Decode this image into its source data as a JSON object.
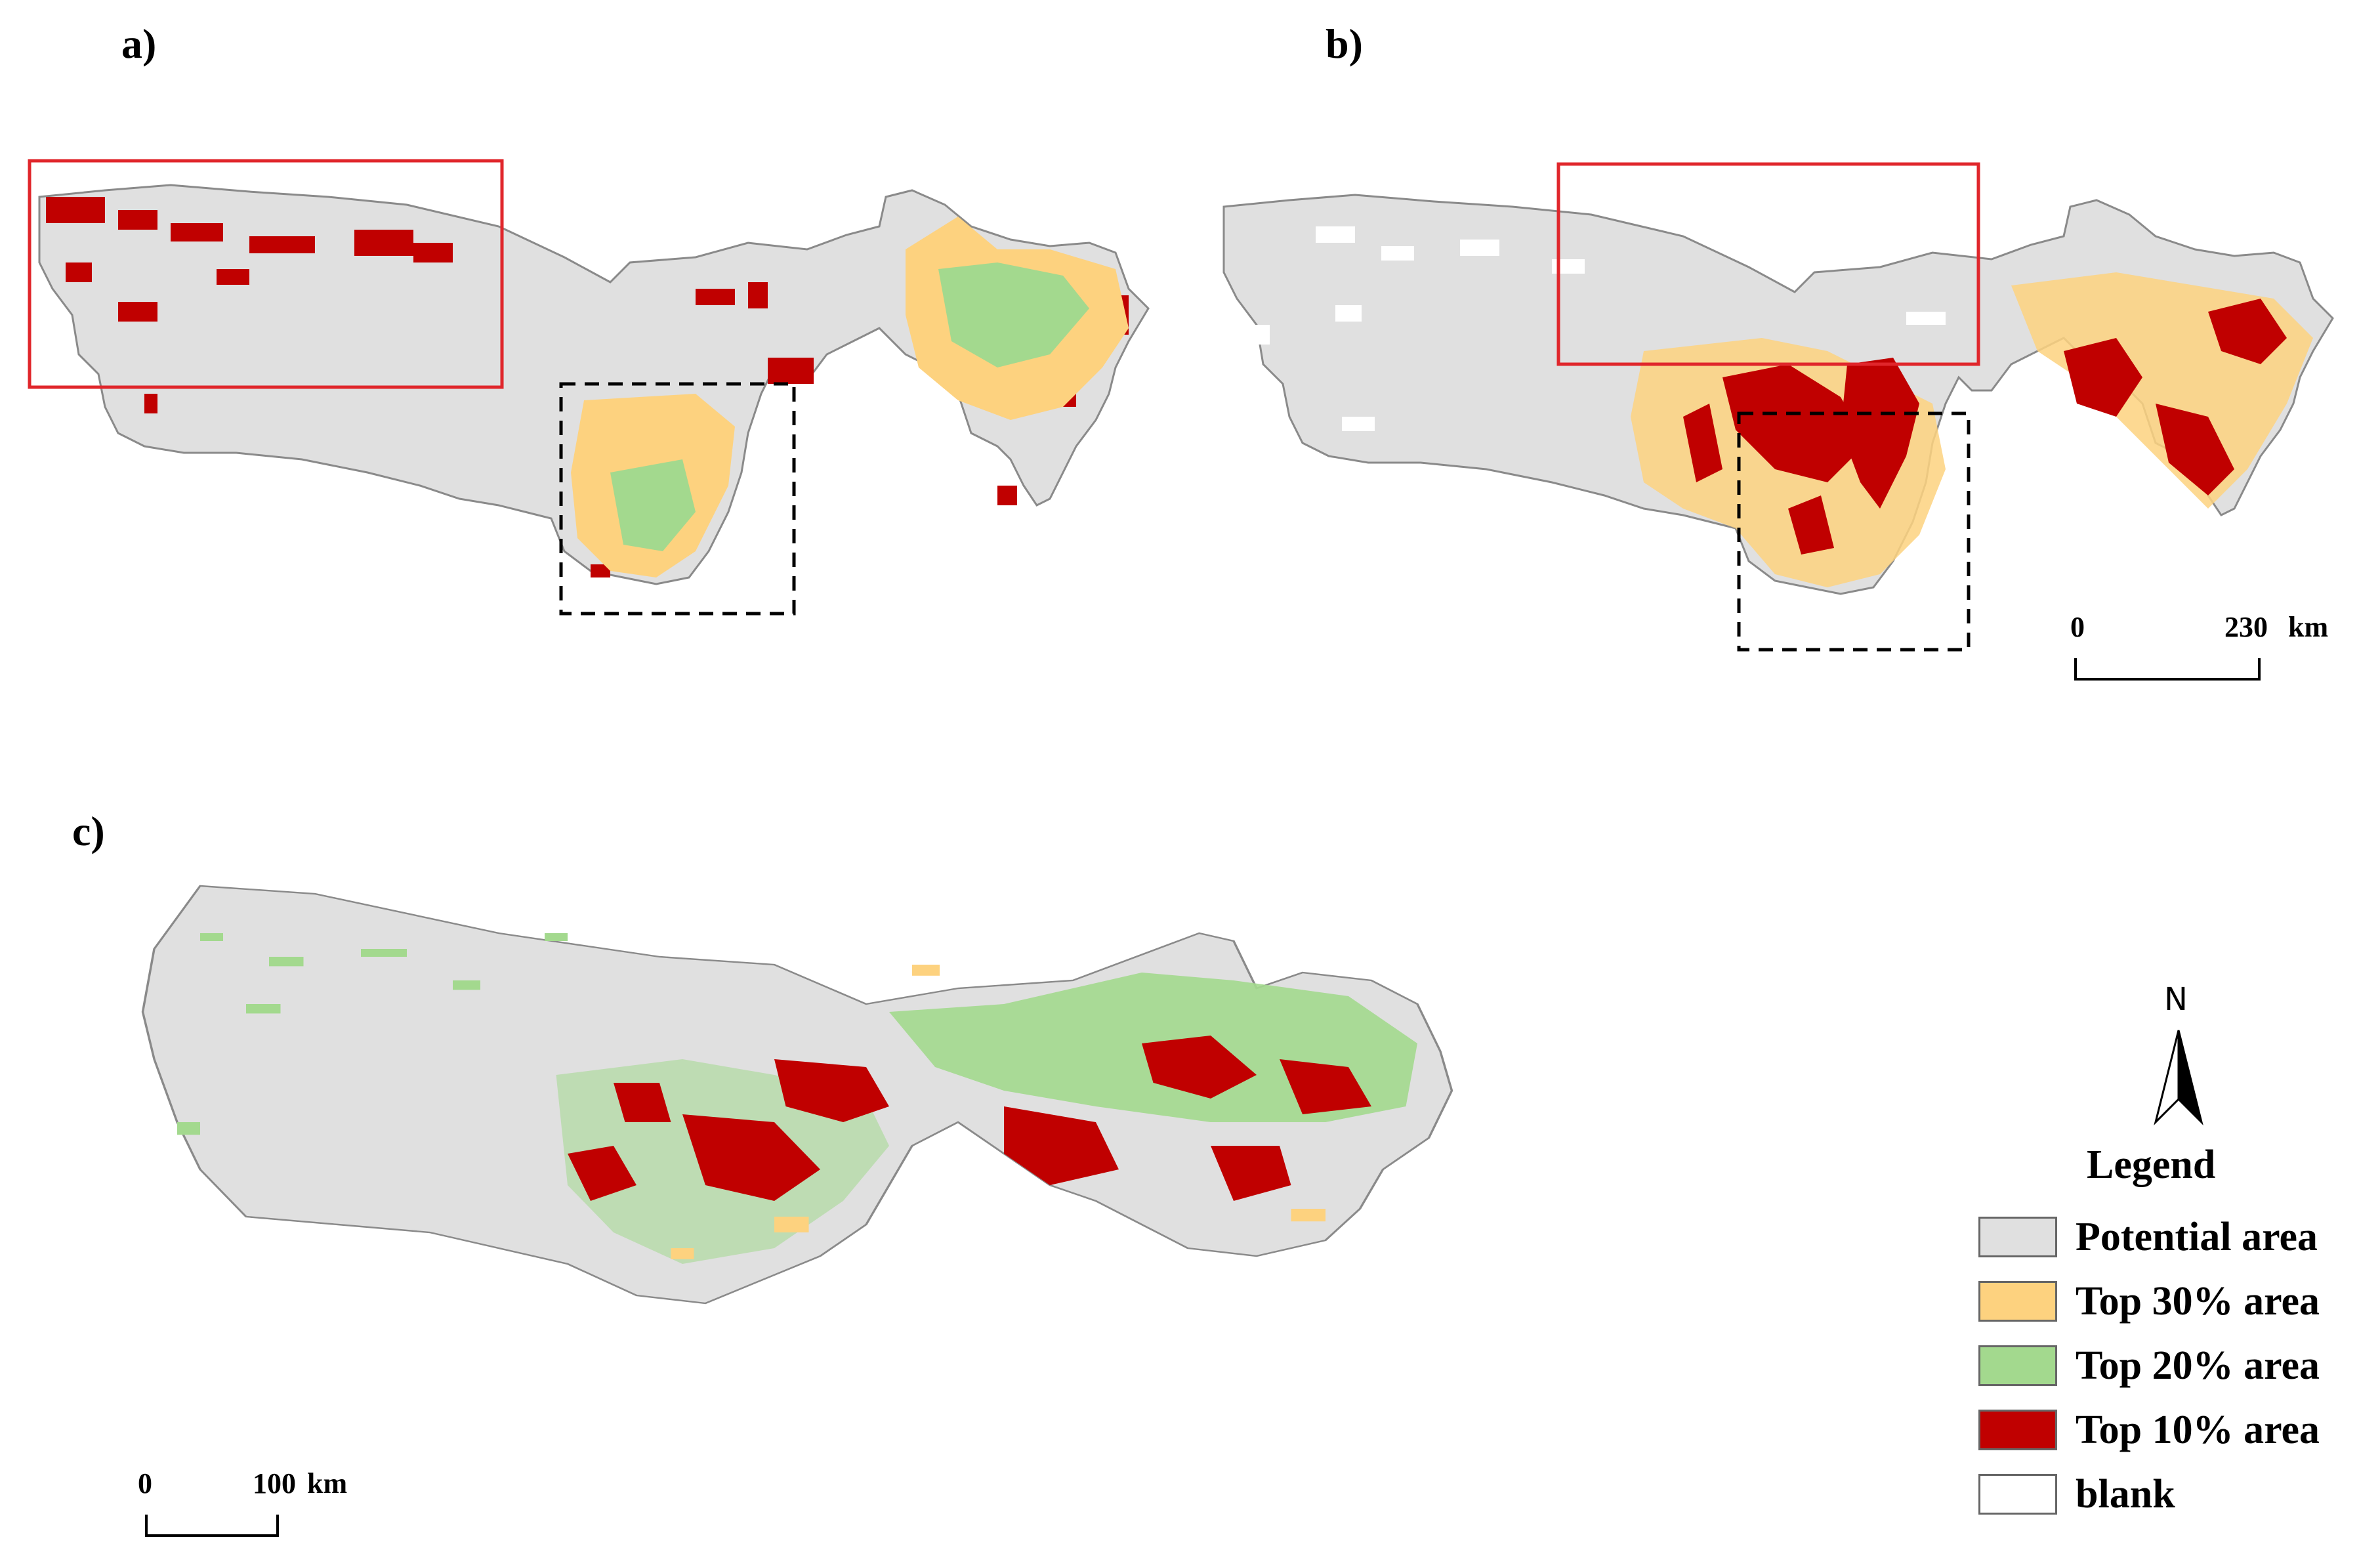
{
  "panels": {
    "a": {
      "label": "a)"
    },
    "b": {
      "label": "b)"
    },
    "c": {
      "label": "c)"
    }
  },
  "colors": {
    "potential": "#e0e0e0",
    "top30": "#fdd27f",
    "top20": "#a3d98e",
    "top10": "#c00000",
    "blank": "#ffffff",
    "highlight_box": "#e0262b",
    "dashed_box": "#000000"
  },
  "scale_bars": {
    "top": {
      "start": "0",
      "end": "230",
      "unit": "km"
    },
    "bottom": {
      "start": "0",
      "end": "100",
      "unit": "km"
    }
  },
  "north_arrow": {
    "letter": "N",
    "icon": "north-arrow-icon"
  },
  "legend": {
    "title": "Legend",
    "items": [
      {
        "label": "Potential area",
        "color": "#e0e0e0"
      },
      {
        "label": "Top 30% area",
        "color": "#fdd27f"
      },
      {
        "label": "Top 20% area",
        "color": "#a3d98e"
      },
      {
        "label": "Top 10% area",
        "color": "#c00000"
      },
      {
        "label": "blank",
        "color": "#ffffff"
      }
    ]
  }
}
